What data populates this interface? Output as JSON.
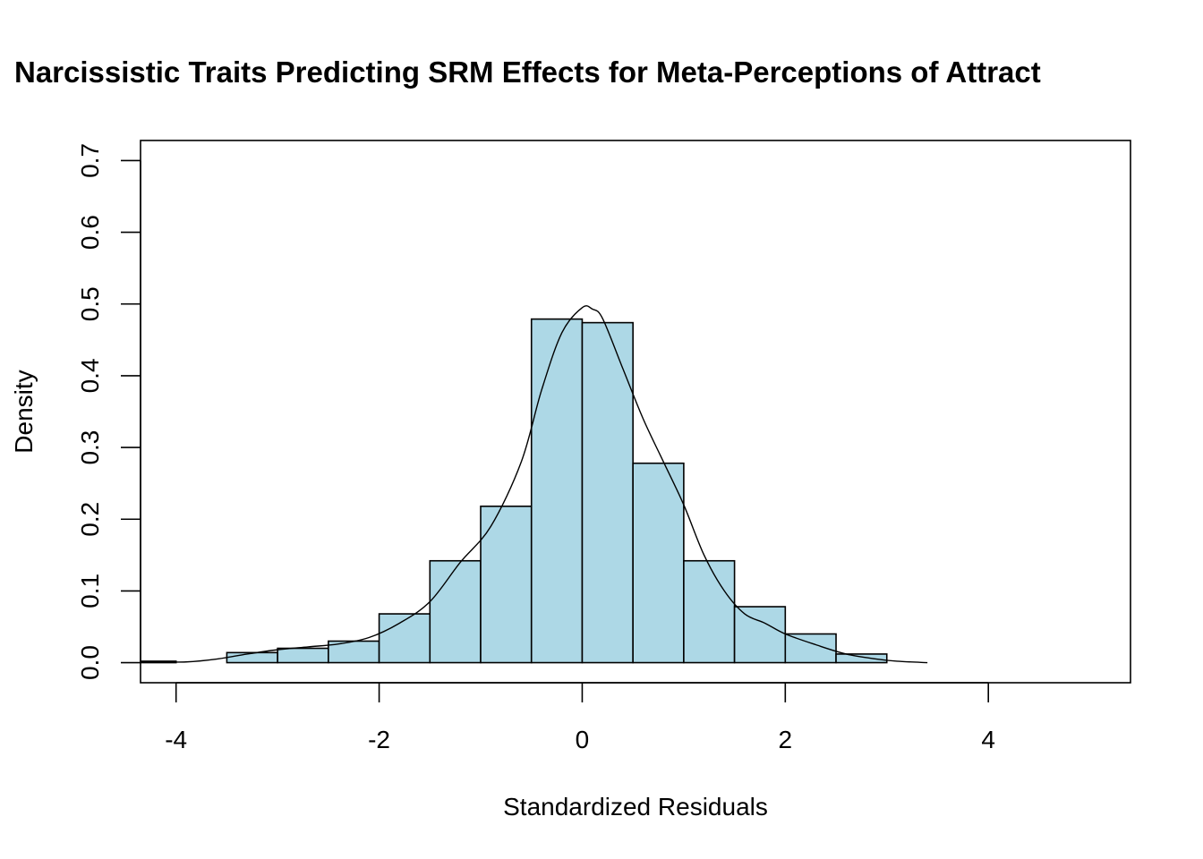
{
  "chart_data": {
    "type": "bar",
    "subtype": "histogram",
    "title": "Narcissistic Traits Predicting SRM Effects for Meta-Perceptions of Attract",
    "xlabel": "Standardized Residuals",
    "ylabel": "Density",
    "xlim": [
      -4.35,
      5.4
    ],
    "ylim": [
      -0.028,
      0.728
    ],
    "x_ticks": [
      -4,
      -2,
      0,
      2,
      4
    ],
    "y_ticks": [
      0.0,
      0.1,
      0.2,
      0.3,
      0.4,
      0.5,
      0.6,
      0.7
    ],
    "x_tick_labels": [
      "-4",
      "-2",
      "0",
      "2",
      "4"
    ],
    "y_tick_labels": [
      "0.0",
      "0.1",
      "0.2",
      "0.3",
      "0.4",
      "0.5",
      "0.6",
      "0.7"
    ],
    "bin_width": 0.5,
    "bins": [
      {
        "start": -4.5,
        "end": -4.0,
        "density": 0.002
      },
      {
        "start": -4.0,
        "end": -3.5,
        "density": 0.0
      },
      {
        "start": -3.5,
        "end": -3.0,
        "density": 0.014
      },
      {
        "start": -3.0,
        "end": -2.5,
        "density": 0.02
      },
      {
        "start": -2.5,
        "end": -2.0,
        "density": 0.03
      },
      {
        "start": -2.0,
        "end": -1.5,
        "density": 0.068
      },
      {
        "start": -1.5,
        "end": -1.0,
        "density": 0.142
      },
      {
        "start": -1.0,
        "end": -0.5,
        "density": 0.218
      },
      {
        "start": -0.5,
        "end": 0.0,
        "density": 0.479
      },
      {
        "start": 0.0,
        "end": 0.5,
        "density": 0.474
      },
      {
        "start": 0.5,
        "end": 1.0,
        "density": 0.278
      },
      {
        "start": 1.0,
        "end": 1.5,
        "density": 0.142
      },
      {
        "start": 1.5,
        "end": 2.0,
        "density": 0.078
      },
      {
        "start": 2.0,
        "end": 2.5,
        "density": 0.04
      },
      {
        "start": 2.5,
        "end": 3.0,
        "density": 0.012
      }
    ],
    "density_curve": {
      "x": [
        -4.5,
        -4.2,
        -3.9,
        -3.6,
        -3.3,
        -3.0,
        -2.7,
        -2.4,
        -2.1,
        -1.8,
        -1.5,
        -1.2,
        -0.9,
        -0.6,
        -0.4,
        -0.2,
        0.0,
        0.1,
        0.2,
        0.4,
        0.6,
        0.8,
        1.0,
        1.2,
        1.4,
        1.6,
        1.8,
        2.0,
        2.3,
        2.6,
        2.9,
        3.1,
        3.4
      ],
      "y": [
        0.001,
        0.001,
        0.001,
        0.005,
        0.012,
        0.018,
        0.022,
        0.026,
        0.035,
        0.055,
        0.085,
        0.14,
        0.19,
        0.28,
        0.38,
        0.46,
        0.495,
        0.493,
        0.48,
        0.41,
        0.34,
        0.28,
        0.22,
        0.15,
        0.1,
        0.068,
        0.055,
        0.04,
        0.025,
        0.012,
        0.005,
        0.002,
        0.0
      ]
    },
    "colors": {
      "bar_fill": "#add8e6",
      "bar_stroke": "#000000",
      "line": "#000000",
      "background": "#ffffff"
    },
    "grid": false,
    "legend": "none"
  }
}
